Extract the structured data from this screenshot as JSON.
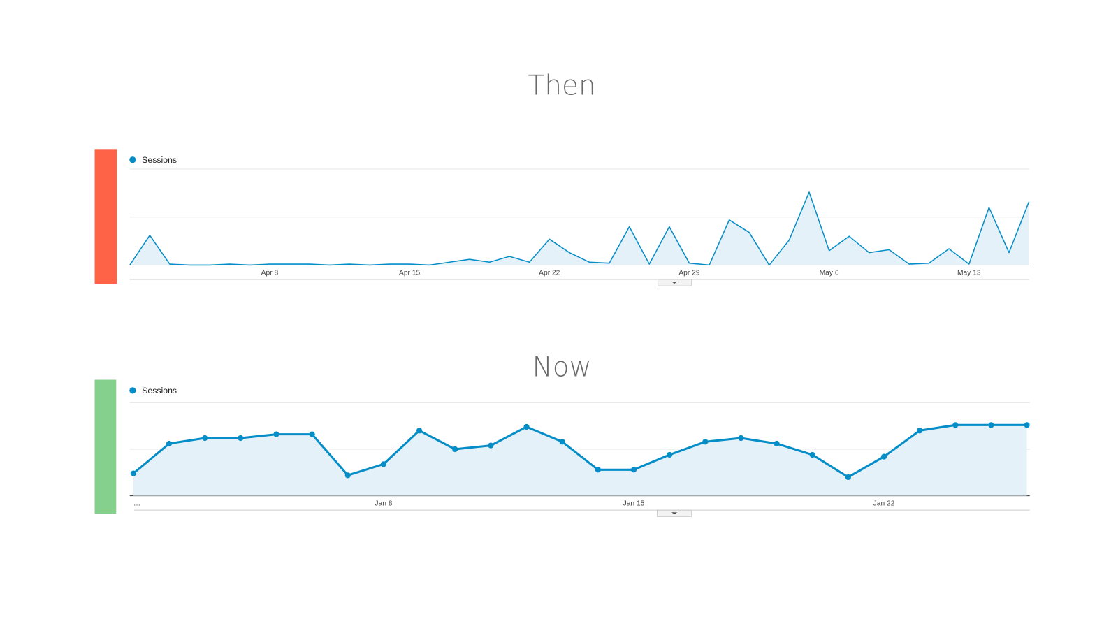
{
  "chart_data": [
    {
      "type": "line",
      "title": "Then",
      "fill": true,
      "markers": false,
      "grid": true,
      "gridlines": [
        0,
        50,
        100
      ],
      "ylim": [
        0,
        100
      ],
      "categories": [
        null,
        null,
        null,
        null,
        null,
        null,
        null,
        "Apr 8",
        null,
        null,
        null,
        null,
        null,
        null,
        "Apr 15",
        null,
        null,
        null,
        null,
        null,
        null,
        "Apr 22",
        null,
        null,
        null,
        null,
        null,
        null,
        "Apr 29",
        null,
        null,
        null,
        null,
        null,
        null,
        "May 6",
        null,
        null,
        null,
        null,
        null,
        null,
        "May 13",
        null,
        null,
        null
      ],
      "series": [
        {
          "name": "Sessions",
          "color": "#058dc7",
          "values": [
            0,
            31,
            1,
            0,
            0,
            1,
            0,
            1,
            1,
            1,
            0,
            1,
            0,
            1,
            1,
            0,
            3,
            6,
            3,
            9,
            3,
            27,
            13,
            3,
            2,
            40,
            1,
            40,
            2,
            0,
            47,
            34,
            0,
            26,
            76,
            15,
            30,
            13,
            16,
            1,
            2,
            17,
            1,
            60,
            13,
            66
          ]
        }
      ]
    },
    {
      "type": "line",
      "title": "Now",
      "fill": true,
      "markers": true,
      "grid": true,
      "gridlines": [
        0,
        50,
        100
      ],
      "ylim": [
        0,
        100
      ],
      "categories": [
        "…",
        null,
        null,
        null,
        null,
        null,
        null,
        "Jan 8",
        null,
        null,
        null,
        null,
        null,
        null,
        "Jan 15",
        null,
        null,
        null,
        null,
        null,
        null,
        "Jan 22",
        null,
        null,
        null,
        null
      ],
      "series": [
        {
          "name": "Sessions",
          "color": "#058dc7",
          "values": [
            24,
            56,
            62,
            62,
            66,
            66,
            22,
            34,
            70,
            50,
            54,
            74,
            58,
            28,
            28,
            44,
            58,
            62,
            56,
            44,
            20,
            42,
            70,
            76,
            76,
            76
          ]
        }
      ]
    }
  ]
}
